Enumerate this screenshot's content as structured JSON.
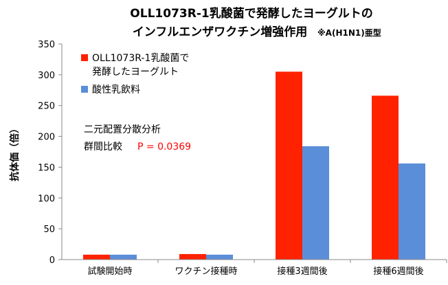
{
  "chart_data": {
    "type": "bar",
    "title_lines": [
      "OLL1073R-1乳酸菌で発酵したヨーグルトの",
      "インフルエンザワクチン増強作用"
    ],
    "title_note": "※A(H1N1)亜型",
    "ylabel": "抗体価（倍）",
    "xlabel": "",
    "ylim": [
      0,
      350
    ],
    "yticks": [
      0,
      50,
      100,
      150,
      200,
      250,
      300,
      350
    ],
    "categories": [
      "試験開始時",
      "ワクチン接種時",
      "接種3週間後",
      "接種6週間後"
    ],
    "series": [
      {
        "name_lines": [
          "OLL1073R-1乳酸菌で",
          "発酵したヨーグルト"
        ],
        "color": "#ff2200",
        "values": [
          8,
          9,
          305,
          266
        ]
      },
      {
        "name_lines": [
          "酸性乳飲料"
        ],
        "color": "#5b8ed8",
        "values": [
          8,
          8,
          184,
          156
        ]
      }
    ],
    "annotation": {
      "line1": "二元配置分散分析",
      "line2_label": "群間比較",
      "line2_value": "P = 0.0369",
      "value_color": "#ff0000"
    },
    "grid": false,
    "legend_position": "top-left"
  }
}
